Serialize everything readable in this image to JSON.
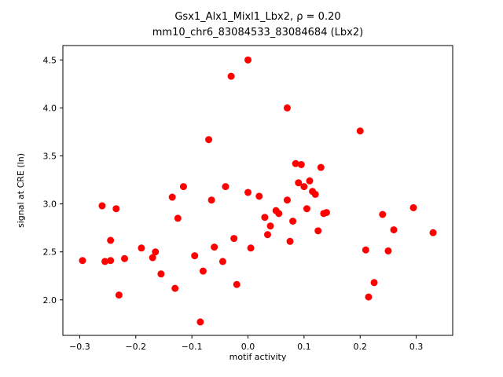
{
  "figure": {
    "background": "#ffffff",
    "axis_color": "#000000"
  },
  "chart_data": {
    "type": "scatter",
    "title": "Gsx1_Alx1_Mixl1_Lbx2, ρ = 0.20",
    "subtitle": "mm10_chr6_83084533_83084684 (Lbx2)",
    "xlabel": "motif activity",
    "ylabel": "signal at CRE (ln)",
    "xlim": [
      -0.33,
      0.365
    ],
    "ylim": [
      1.63,
      4.65
    ],
    "xtick_values": [
      -0.3,
      -0.2,
      -0.1,
      0.0,
      0.1,
      0.2,
      0.3
    ],
    "xtick_labels": [
      "−0.3",
      "−0.2",
      "−0.1",
      "0.0",
      "0.1",
      "0.2",
      "0.3"
    ],
    "ytick_values": [
      2.0,
      2.5,
      3.0,
      3.5,
      4.0,
      4.5
    ],
    "ytick_labels": [
      "2.0",
      "2.5",
      "3.0",
      "3.5",
      "4.0",
      "4.5"
    ],
    "marker_color": "#ff0000",
    "marker_radius": 4.5,
    "grid": false,
    "legend": "none",
    "points": [
      [
        -0.295,
        2.41
      ],
      [
        -0.26,
        2.98
      ],
      [
        -0.255,
        2.4
      ],
      [
        -0.245,
        2.41
      ],
      [
        -0.245,
        2.62
      ],
      [
        -0.235,
        2.95
      ],
      [
        -0.23,
        2.05
      ],
      [
        -0.22,
        2.43
      ],
      [
        -0.19,
        2.54
      ],
      [
        -0.17,
        2.44
      ],
      [
        -0.165,
        2.5
      ],
      [
        -0.155,
        2.27
      ],
      [
        -0.135,
        3.07
      ],
      [
        -0.13,
        2.12
      ],
      [
        -0.125,
        2.85
      ],
      [
        -0.115,
        3.18
      ],
      [
        -0.095,
        2.46
      ],
      [
        -0.085,
        1.77
      ],
      [
        -0.08,
        2.3
      ],
      [
        -0.07,
        3.67
      ],
      [
        -0.065,
        3.04
      ],
      [
        -0.06,
        2.55
      ],
      [
        -0.045,
        2.4
      ],
      [
        -0.04,
        3.18
      ],
      [
        -0.03,
        4.33
      ],
      [
        -0.025,
        2.64
      ],
      [
        -0.02,
        2.16
      ],
      [
        0.0,
        4.5
      ],
      [
        0.0,
        3.12
      ],
      [
        0.005,
        2.54
      ],
      [
        0.02,
        3.08
      ],
      [
        0.03,
        2.86
      ],
      [
        0.035,
        2.68
      ],
      [
        0.04,
        2.77
      ],
      [
        0.05,
        2.93
      ],
      [
        0.055,
        2.9
      ],
      [
        0.07,
        4.0
      ],
      [
        0.07,
        3.04
      ],
      [
        0.075,
        2.61
      ],
      [
        0.08,
        2.82
      ],
      [
        0.085,
        3.42
      ],
      [
        0.09,
        3.22
      ],
      [
        0.095,
        3.41
      ],
      [
        0.1,
        3.18
      ],
      [
        0.105,
        2.95
      ],
      [
        0.11,
        3.24
      ],
      [
        0.115,
        3.13
      ],
      [
        0.12,
        3.1
      ],
      [
        0.125,
        2.72
      ],
      [
        0.13,
        3.38
      ],
      [
        0.135,
        2.9
      ],
      [
        0.14,
        2.91
      ],
      [
        0.2,
        3.76
      ],
      [
        0.21,
        2.52
      ],
      [
        0.215,
        2.03
      ],
      [
        0.225,
        2.18
      ],
      [
        0.24,
        2.89
      ],
      [
        0.25,
        2.51
      ],
      [
        0.26,
        2.73
      ],
      [
        0.295,
        2.96
      ],
      [
        0.33,
        2.7
      ]
    ]
  }
}
